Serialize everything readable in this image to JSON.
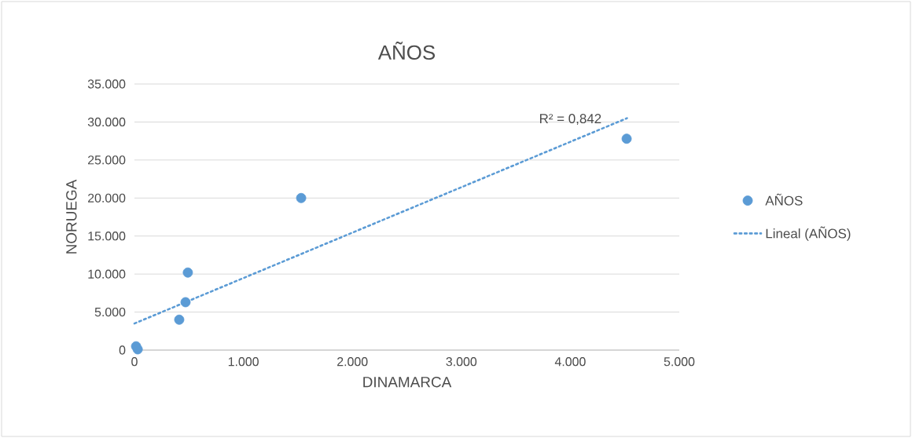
{
  "chart_data": {
    "type": "scatter",
    "title": "AÑOS",
    "xlabel": "DINAMARCA",
    "ylabel": "NORUEGA",
    "series": [
      {
        "name": "AÑOS",
        "color": "#5b9bd5",
        "marker": "circle",
        "x": [
          15,
          30,
          411,
          469,
          490,
          1530,
          4517
        ],
        "values": [
          500,
          100,
          4000,
          6300,
          10200,
          20000,
          27800
        ]
      },
      {
        "name": "Lineal (AÑOS)",
        "type": "line",
        "color": "#5b9bd5",
        "line_style": "dotted",
        "x": [
          0,
          4520
        ],
        "values": [
          3500,
          30500
        ]
      }
    ],
    "annotations": [
      "R² = 0,842"
    ],
    "xlim": [
      0,
      5000
    ],
    "ylim": [
      0,
      35000
    ],
    "xticks": [
      0,
      {
        "value": 1000,
        "label": "1.000"
      },
      {
        "value": 2000,
        "label": "2.000"
      },
      {
        "value": 3000,
        "label": "3.000"
      },
      {
        "value": 4000,
        "label": "4.000"
      },
      {
        "value": 5000,
        "label": "5.000"
      }
    ],
    "yticks": [
      0,
      {
        "value": 5000,
        "label": "5.000"
      },
      {
        "value": 10000,
        "label": "10.000"
      },
      {
        "value": 15000,
        "label": "15.000"
      },
      {
        "value": 20000,
        "label": "20.000"
      },
      {
        "value": 25000,
        "label": "25.000"
      },
      {
        "value": 30000,
        "label": "30.000"
      },
      {
        "value": 35000,
        "label": "35.000"
      }
    ],
    "grid": "y",
    "legend": "right"
  }
}
